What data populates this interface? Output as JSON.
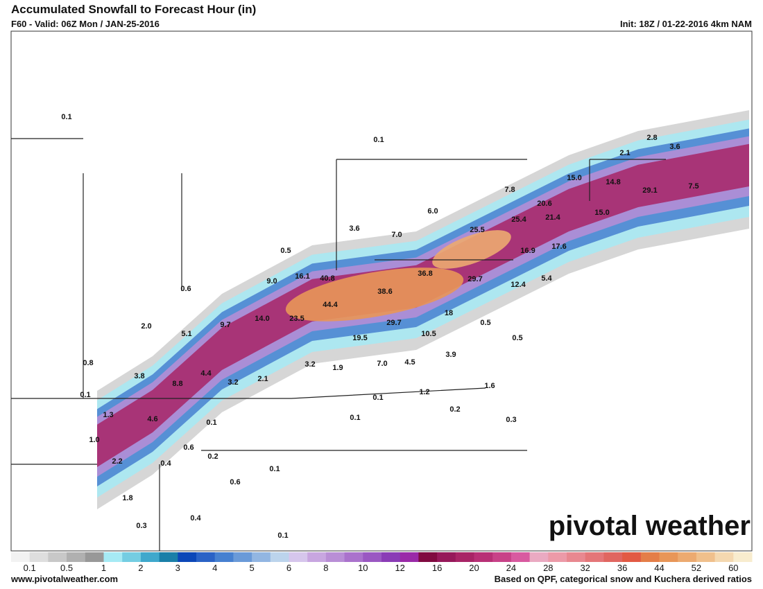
{
  "header": {
    "title": "Accumulated Snowfall to Forecast Hour (in)",
    "valid": "F60 - Valid: 06Z Mon / JAN-25-2016",
    "init": "Init: 18Z / 01-22-2016 4km NAM"
  },
  "map": {
    "labels": [
      "0.1",
      "0.1",
      "2.1",
      "2.8",
      "3.6",
      "15.0",
      "14.8",
      "29.1",
      "7.5",
      "7.8",
      "20.6",
      "25.4",
      "21.4",
      "15.0",
      "6.0",
      "3.6",
      "7.0",
      "25.5",
      "0.5",
      "16.9",
      "17.6",
      "9.0",
      "16.1",
      "40.8",
      "36.8",
      "38.6",
      "29.7",
      "12.4",
      "5.4",
      "0.6",
      "44.4",
      "23.5",
      "14.0",
      "9.7",
      "2.0",
      "5.1",
      "18",
      "29.7",
      "0.5",
      "10.5",
      "19.5",
      "0.5",
      "0.8",
      "3.2",
      "1.9",
      "7.0",
      "4.5",
      "3.9",
      "3.8",
      "4.4",
      "8.8",
      "3.2",
      "2.1",
      "1.6",
      "0.1",
      "0.1",
      "1.2",
      "1.3",
      "4.6",
      "0.1",
      "0.1",
      "0.2",
      "0.3",
      "1.0",
      "0.6",
      "0.2",
      "2.2",
      "0.4",
      "0.1",
      "0.6",
      "1.8",
      "0.4",
      "0.3",
      "0.1"
    ]
  },
  "logo": "pivotal weather",
  "colorbar": {
    "labels": [
      "0.1",
      "0.5",
      "1",
      "2",
      "3",
      "4",
      "5",
      "6",
      "8",
      "10",
      "12",
      "16",
      "20",
      "24",
      "28",
      "32",
      "36",
      "44",
      "52",
      "60"
    ],
    "colors": [
      "#f2f2f2",
      "#dedede",
      "#c8c8c8",
      "#b0b0b0",
      "#989898",
      "#a6eaf4",
      "#74cde2",
      "#3fa8cc",
      "#1a7fa8",
      "#0c47b8",
      "#2a62c6",
      "#4680d0",
      "#6a9ad8",
      "#92b6e2",
      "#bcd4ec",
      "#d6c6ec",
      "#c8a6e0",
      "#b98ed6",
      "#aa72cc",
      "#9a58c2",
      "#8a3cb6",
      "#9a2aa8",
      "#800a40",
      "#96185a",
      "#a82466",
      "#b83076",
      "#c84288",
      "#d85aa0",
      "#eaaac2",
      "#ec9aa8",
      "#e88890",
      "#e47678",
      "#e06660",
      "#e25a44",
      "#e47e48",
      "#e89658",
      "#ecaa70",
      "#f0c08c",
      "#f4d8b0",
      "#f8ecce"
    ]
  },
  "footer": {
    "site": "www.pivotalweather.com",
    "note": "Based on QPF, categorical snow and Kuchera derived ratios"
  }
}
